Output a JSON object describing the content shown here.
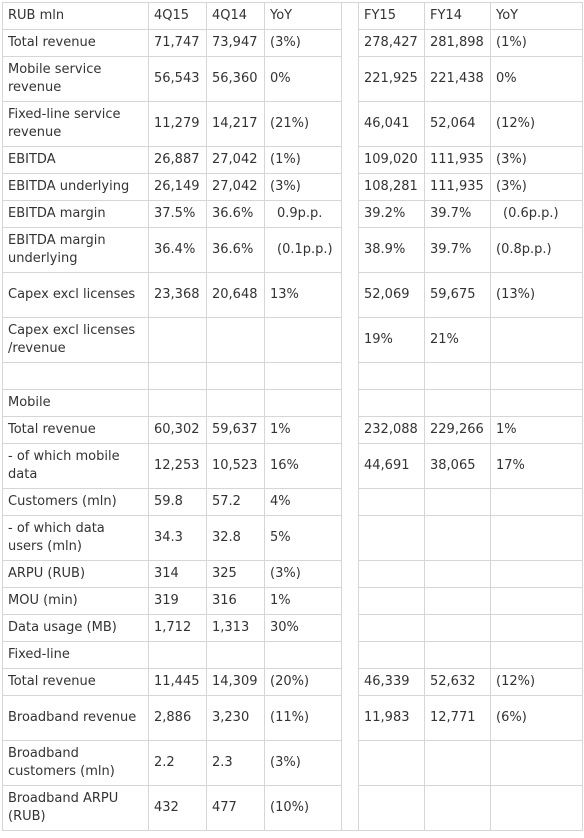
{
  "columns": [
    "RUB mln",
    "4Q15",
    "4Q14",
    "YoY",
    "",
    "FY15",
    "FY14",
    "YoY"
  ],
  "rows": [
    {
      "cells": [
        "Total revenue",
        "71,747",
        "73,947",
        "(3%)",
        "278,427",
        "281,898",
        "(1%)"
      ],
      "tall": false
    },
    {
      "cells": [
        "Mobile service revenue",
        "56,543",
        "56,360",
        "0%",
        "221,925",
        "221,438",
        "0%"
      ],
      "tall": true
    },
    {
      "cells": [
        "Fixed-line service revenue",
        "11,279",
        "14,217",
        "(21%)",
        "46,041",
        "52,064",
        "(12%)"
      ],
      "tall": true
    },
    {
      "cells": [
        "EBITDA",
        "26,887",
        "27,042",
        "(1%)",
        "109,020",
        "111,935",
        "(3%)"
      ],
      "tall": false
    },
    {
      "cells": [
        "EBITDA underlying",
        "26,149",
        "27,042",
        "(3%)",
        "108,281",
        "111,935",
        "(3%)"
      ],
      "tall": false
    },
    {
      "cells": [
        "EBITDA margin",
        "37.5%",
        "36.6%",
        "0.9p.p.",
        "39.2%",
        "39.7%",
        "(0.6p.p.)"
      ],
      "tall": false,
      "indent": [
        3,
        6
      ]
    },
    {
      "cells": [
        "EBITDA margin underlying",
        "36.4%",
        "36.6%",
        "(0.1p.p.)",
        "38.9%",
        "39.7%",
        "(0.8p.p.)"
      ],
      "tall": true,
      "indent": [
        3
      ]
    },
    {
      "cells": [
        "Capex excl licenses",
        "23,368",
        "20,648",
        "13%",
        "52,069",
        "59,675",
        "(13%)"
      ],
      "tall": true
    },
    {
      "cells": [
        "Capex excl licenses /revenue",
        "",
        "",
        "",
        "19%",
        "21%",
        ""
      ],
      "tall": true
    },
    {
      "cells": [
        "",
        "",
        "",
        "",
        "",
        "",
        ""
      ],
      "tall": false
    },
    {
      "cells": [
        "Mobile",
        "",
        "",
        "",
        "",
        "",
        ""
      ],
      "tall": false
    },
    {
      "cells": [
        "Total revenue",
        "60,302",
        "59,637",
        "1%",
        "232,088",
        "229,266",
        "1%"
      ],
      "tall": false
    },
    {
      "cells": [
        "- of which mobile data",
        "12,253",
        "10,523",
        "16%",
        "44,691",
        "38,065",
        "17%"
      ],
      "tall": true
    },
    {
      "cells": [
        "Customers (mln)",
        "59.8",
        "57.2",
        "4%",
        "",
        "",
        ""
      ],
      "tall": false
    },
    {
      "cells": [
        "- of which data users (mln)",
        "34.3",
        "32.8",
        "5%",
        "",
        "",
        ""
      ],
      "tall": true
    },
    {
      "cells": [
        "ARPU (RUB)",
        "314",
        "325",
        "(3%)",
        "",
        "",
        ""
      ],
      "tall": false
    },
    {
      "cells": [
        "MOU (min)",
        "319",
        "316",
        "1%",
        "",
        "",
        ""
      ],
      "tall": false
    },
    {
      "cells": [
        "Data usage (MB)",
        "1,712",
        "1,313",
        "30%",
        "",
        "",
        ""
      ],
      "tall": false
    },
    {
      "cells": [
        "Fixed-line",
        "",
        "",
        "",
        "",
        "",
        ""
      ],
      "tall": false
    },
    {
      "cells": [
        "Total revenue",
        "11,445",
        "14,309",
        "(20%)",
        "46,339",
        "52,632",
        "(12%)"
      ],
      "tall": false
    },
    {
      "cells": [
        "Broadband revenue",
        "2,886",
        "3,230",
        "(11%)",
        "11,983",
        "12,771",
        "(6%)"
      ],
      "tall": true
    },
    {
      "cells": [
        "Broadband customers (mln)",
        "2.2",
        "2.3",
        "(3%)",
        "",
        "",
        ""
      ],
      "tall": true
    },
    {
      "cells": [
        "Broadband ARPU (RUB)",
        "432",
        "477",
        "(10%)",
        "",
        "",
        ""
      ],
      "tall": true
    }
  ]
}
